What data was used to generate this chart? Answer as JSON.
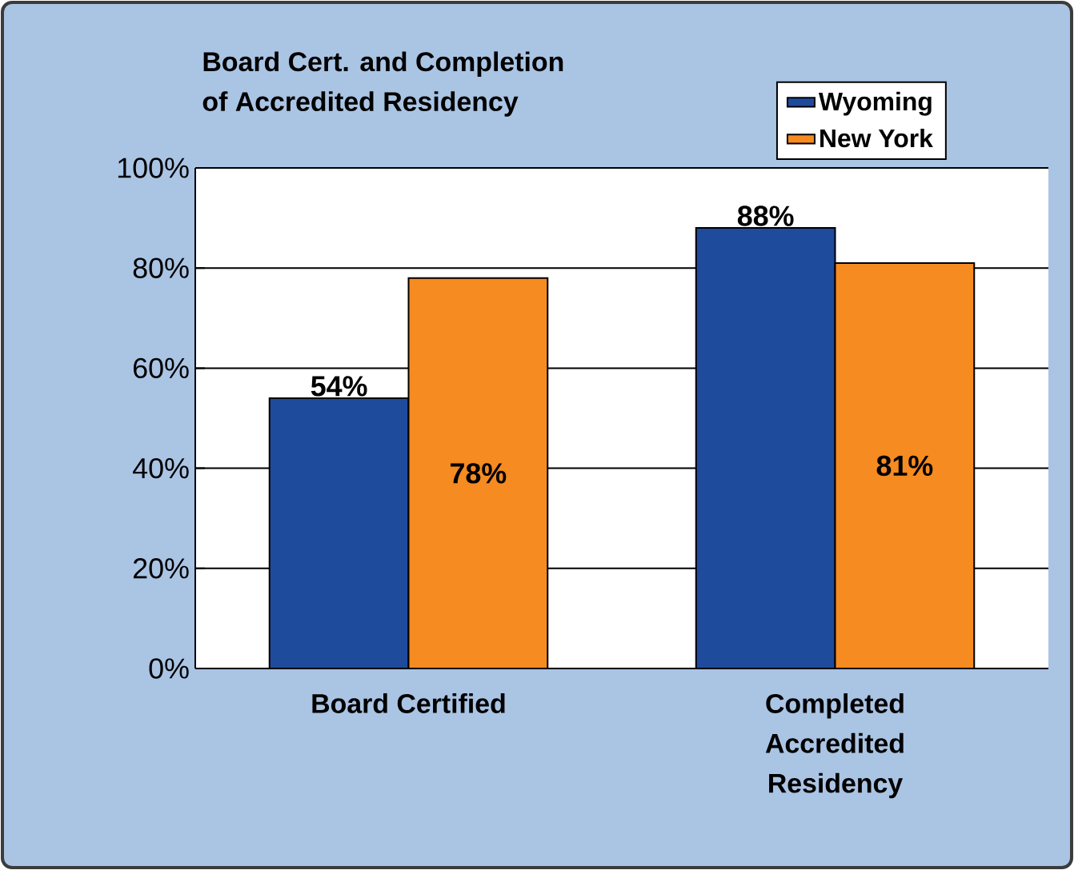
{
  "chart_data": {
    "type": "bar",
    "title": "Board Cert. and Completion\nof Accredited Residency",
    "categories": [
      "Board Certified",
      "Completed\nAccredited\nResidency"
    ],
    "series": [
      {
        "name": "Wyoming",
        "color": "#1f4b9c",
        "values": [
          54,
          88
        ],
        "value_labels": [
          "54%",
          "88%"
        ]
      },
      {
        "name": "New York",
        "color": "#f68b21",
        "values": [
          78,
          81
        ],
        "value_labels": [
          "78%",
          "81%"
        ]
      }
    ],
    "ylim": [
      0,
      100
    ],
    "yticks": [
      {
        "value": 0,
        "label": "0%"
      },
      {
        "value": 20,
        "label": "20%"
      },
      {
        "value": 40,
        "label": "40%"
      },
      {
        "value": 60,
        "label": "60%"
      },
      {
        "value": 80,
        "label": "80%"
      },
      {
        "value": 100,
        "label": "100%"
      }
    ],
    "grid": "y",
    "legend": "top right"
  }
}
